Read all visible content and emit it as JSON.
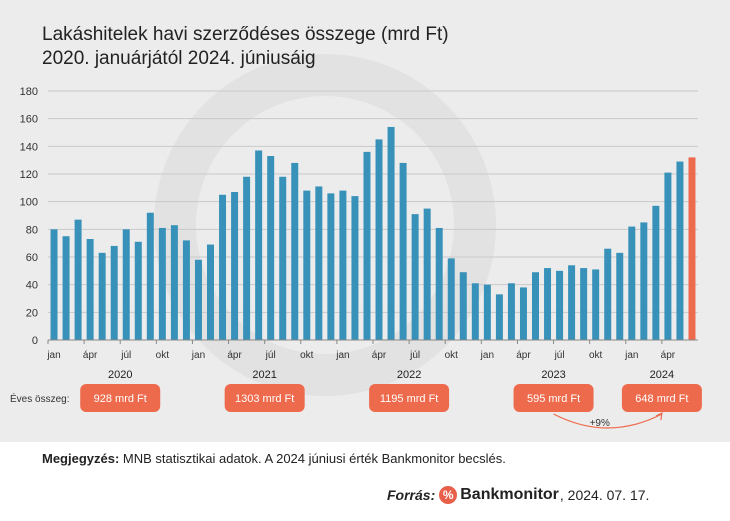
{
  "colors": {
    "bar": "#3791b8",
    "highlight": "#ee6a4c",
    "background": "#ececec",
    "grid": "#c9c9c9",
    "pill": "#ee6a4c"
  },
  "chart_data": {
    "type": "bar",
    "title_line1": "Lakáshitelek havi szerződéses összege (mrd Ft)",
    "title_line2": "2020. januárjától 2024. júniusáig",
    "ylim": [
      0,
      180
    ],
    "yticks": [
      0,
      20,
      40,
      60,
      80,
      100,
      120,
      140,
      160,
      180
    ],
    "month_labels": [
      "jan",
      "ápr",
      "júl",
      "okt"
    ],
    "years": [
      "2020",
      "2021",
      "2022",
      "2023",
      "2024"
    ],
    "values": [
      80,
      75,
      87,
      73,
      63,
      68,
      80,
      71,
      92,
      81,
      83,
      72,
      58,
      69,
      105,
      107,
      118,
      137,
      133,
      118,
      128,
      108,
      111,
      106,
      108,
      104,
      136,
      145,
      154,
      128,
      91,
      95,
      81,
      59,
      49,
      41,
      40,
      33,
      41,
      38,
      49,
      52,
      50,
      54,
      52,
      51,
      66,
      63,
      82,
      85,
      97,
      121,
      129,
      132
    ],
    "highlight_index": 53,
    "annual_label": "Éves összeg:",
    "annual_totals": [
      "928 mrd Ft",
      "1303 mrd Ft",
      "1195 mrd Ft",
      "595 mrd Ft",
      "648 mrd Ft"
    ],
    "growth_label": "+9%"
  },
  "note": {
    "label": "Megjegyzés:",
    "text": " MNB statisztikai adatok. A 2024 júniusi érték Bankmonitor becslés."
  },
  "source": {
    "label": "Forrás:",
    "logo": "%",
    "brand": "Bankmonitor",
    "date": ", 2024. 07. 17."
  }
}
